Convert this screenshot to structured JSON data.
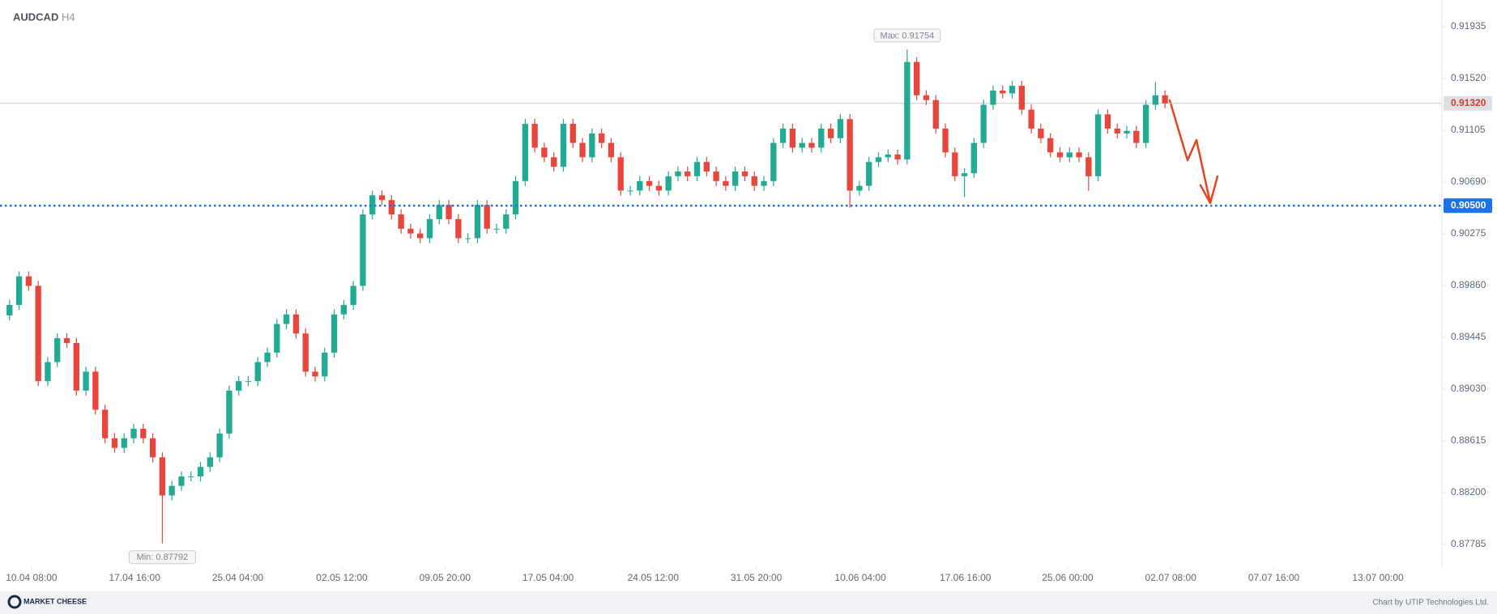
{
  "chart_data": {
    "type": "candlestick",
    "title": "AUDCAD",
    "subtitle": "H4",
    "up_color": "#22ab94",
    "down_color": "#e8453c",
    "grid": false,
    "open": [
      0.8962,
      0.89704,
      0.89933,
      0.89857,
      0.89093,
      0.89246,
      0.89437,
      0.89399,
      0.89017,
      0.89169,
      0.88864,
      0.88635,
      0.88558,
      0.88635,
      0.88711,
      0.88635,
      0.88482,
      0.88176,
      0.88253,
      0.88329,
      0.88329,
      0.88405,
      0.88482,
      0.88673,
      0.89017,
      0.89093,
      0.89093,
      0.89246,
      0.89322,
      0.89551,
      0.89628,
      0.89475,
      0.89169,
      0.89131,
      0.89322,
      0.89628,
      0.89704,
      0.89857,
      0.9043,
      0.90583,
      0.90545,
      0.9043,
      0.90315,
      0.90277,
      0.90239,
      0.90392,
      0.90506,
      0.90392,
      0.90239,
      0.90239,
      0.90506,
      0.90315,
      0.90315,
      0.9043,
      0.90697,
      0.91156,
      0.90965,
      0.90888,
      0.90812,
      0.91156,
      0.91003,
      0.90888,
      0.91079,
      0.91003,
      0.90888,
      0.90621,
      0.90621,
      0.90697,
      0.90659,
      0.90621,
      0.90736,
      0.90774,
      0.90736,
      0.9085,
      0.90774,
      0.90697,
      0.90659,
      0.90774,
      0.90736,
      0.90659,
      0.90697,
      0.91003,
      0.91118,
      0.90965,
      0.91003,
      0.90965,
      0.91118,
      0.91041,
      0.91194,
      0.90621,
      0.90659,
      0.9085,
      0.90888,
      0.9091,
      0.9087,
      0.91652,
      0.91385,
      0.91347,
      0.91118,
      0.90927,
      0.90736,
      0.9076,
      0.91003,
      0.91309,
      0.91423,
      0.914,
      0.91461,
      0.9127,
      0.91118,
      0.91041,
      0.90927,
      0.90888,
      0.90927,
      0.90888,
      0.90736,
      0.91232,
      0.91118,
      0.91079,
      0.911,
      0.91003,
      0.91309,
      0.91385
    ],
    "high": [
      0.89744,
      0.89973,
      0.89973,
      0.89897,
      0.89286,
      0.89477,
      0.89477,
      0.89439,
      0.89209,
      0.89209,
      0.88904,
      0.88675,
      0.88675,
      0.88751,
      0.88751,
      0.88675,
      0.88522,
      0.88293,
      0.88369,
      0.88369,
      0.88445,
      0.88522,
      0.88713,
      0.89057,
      0.89133,
      0.89133,
      0.89286,
      0.89362,
      0.89591,
      0.89668,
      0.89668,
      0.89515,
      0.89209,
      0.89362,
      0.89668,
      0.89744,
      0.89897,
      0.9047,
      0.90623,
      0.90623,
      0.90585,
      0.9047,
      0.90355,
      0.90317,
      0.90432,
      0.90546,
      0.90546,
      0.90432,
      0.90279,
      0.90546,
      0.90546,
      0.90355,
      0.9047,
      0.90737,
      0.91196,
      0.91196,
      0.91005,
      0.90928,
      0.91196,
      0.91196,
      0.91043,
      0.91119,
      0.91119,
      0.91043,
      0.90928,
      0.90661,
      0.90737,
      0.90737,
      0.90699,
      0.90776,
      0.90814,
      0.90814,
      0.9089,
      0.9089,
      0.90814,
      0.90737,
      0.90814,
      0.90814,
      0.90776,
      0.90737,
      0.91043,
      0.91158,
      0.91158,
      0.91043,
      0.91043,
      0.91158,
      0.91158,
      0.91234,
      0.91234,
      0.90699,
      0.9089,
      0.90928,
      0.9095,
      0.9095,
      0.91754,
      0.91692,
      0.91425,
      0.91387,
      0.91158,
      0.90967,
      0.908,
      0.91043,
      0.91349,
      0.91463,
      0.91463,
      0.91501,
      0.91501,
      0.9131,
      0.91158,
      0.91081,
      0.90967,
      0.90967,
      0.90967,
      0.90928,
      0.91272,
      0.91272,
      0.91158,
      0.9114,
      0.9114,
      0.91349,
      0.9149,
      0.91425
    ],
    "low": [
      0.8958,
      0.89664,
      0.89817,
      0.89053,
      0.89053,
      0.89206,
      0.89359,
      0.88977,
      0.88977,
      0.88824,
      0.88595,
      0.88518,
      0.88518,
      0.88595,
      0.88595,
      0.88442,
      0.87792,
      0.88136,
      0.88213,
      0.88289,
      0.88289,
      0.88365,
      0.88442,
      0.88633,
      0.88977,
      0.89053,
      0.89053,
      0.89206,
      0.89282,
      0.89511,
      0.89435,
      0.89129,
      0.89091,
      0.89091,
      0.89282,
      0.89588,
      0.89664,
      0.89817,
      0.9039,
      0.90505,
      0.9039,
      0.90275,
      0.90237,
      0.90199,
      0.90199,
      0.90352,
      0.90352,
      0.90199,
      0.90199,
      0.90199,
      0.90275,
      0.90275,
      0.90275,
      0.9039,
      0.90657,
      0.90925,
      0.90848,
      0.90772,
      0.90772,
      0.90963,
      0.90848,
      0.90848,
      0.90963,
      0.90848,
      0.90581,
      0.90581,
      0.90581,
      0.90619,
      0.90581,
      0.90581,
      0.90696,
      0.90696,
      0.90696,
      0.90734,
      0.90657,
      0.90619,
      0.90619,
      0.90696,
      0.90619,
      0.90619,
      0.90657,
      0.90963,
      0.90925,
      0.90925,
      0.90925,
      0.90925,
      0.91001,
      0.91001,
      0.90483,
      0.90581,
      0.90619,
      0.9081,
      0.90848,
      0.9083,
      0.9083,
      0.91345,
      0.91307,
      0.91078,
      0.90887,
      0.90696,
      0.9057,
      0.9072,
      0.90963,
      0.91269,
      0.9136,
      0.9136,
      0.9123,
      0.91078,
      0.91001,
      0.90887,
      0.90848,
      0.90848,
      0.90848,
      0.9062,
      0.90696,
      0.91078,
      0.91039,
      0.91039,
      0.90963,
      0.90963,
      0.91269,
      0.9128
    ],
    "close": [
      0.89704,
      0.89933,
      0.89857,
      0.89093,
      0.89246,
      0.89437,
      0.89399,
      0.89017,
      0.89169,
      0.88864,
      0.88635,
      0.88558,
      0.88635,
      0.88711,
      0.88635,
      0.88482,
      0.88176,
      0.88253,
      0.88329,
      0.88329,
      0.88405,
      0.88482,
      0.88673,
      0.89017,
      0.89093,
      0.89093,
      0.89246,
      0.89322,
      0.89551,
      0.89628,
      0.89475,
      0.89169,
      0.89131,
      0.89322,
      0.89628,
      0.89704,
      0.89857,
      0.9043,
      0.90583,
      0.90545,
      0.9043,
      0.90315,
      0.90277,
      0.90239,
      0.90392,
      0.90506,
      0.90392,
      0.90239,
      0.90239,
      0.90506,
      0.90315,
      0.90315,
      0.9043,
      0.90697,
      0.91156,
      0.90965,
      0.90888,
      0.90812,
      0.91156,
      0.91003,
      0.90888,
      0.91079,
      0.91003,
      0.90888,
      0.90621,
      0.90621,
      0.90697,
      0.90659,
      0.90621,
      0.90736,
      0.90774,
      0.90736,
      0.9085,
      0.90774,
      0.90697,
      0.90659,
      0.90774,
      0.90736,
      0.90659,
      0.90697,
      0.91003,
      0.91118,
      0.90965,
      0.91003,
      0.90965,
      0.91118,
      0.91041,
      0.91194,
      0.90621,
      0.90659,
      0.9085,
      0.90888,
      0.9091,
      0.9087,
      0.91652,
      0.91385,
      0.91347,
      0.91118,
      0.90927,
      0.90736,
      0.9076,
      0.91003,
      0.91309,
      0.91423,
      0.914,
      0.91461,
      0.9127,
      0.91118,
      0.91041,
      0.90927,
      0.90888,
      0.90927,
      0.90888,
      0.90736,
      0.91232,
      0.91118,
      0.91079,
      0.911,
      0.91003,
      0.91309,
      0.91385,
      0.9132
    ],
    "xlim": [
      -1,
      150
    ],
    "xticks": [
      {
        "value": 2.3,
        "label": "10.04 08:00"
      },
      {
        "value": 13.1,
        "label": "17.04 16:00"
      },
      {
        "value": 23.9,
        "label": "25.04 04:00"
      },
      {
        "value": 34.8,
        "label": "02.05 12:00"
      },
      {
        "value": 45.6,
        "label": "09.05 20:00"
      },
      {
        "value": 56.4,
        "label": "17.05 04:00"
      },
      {
        "value": 67.4,
        "label": "24.05 12:00"
      },
      {
        "value": 78.2,
        "label": "31.05 20:00"
      },
      {
        "value": 89.1,
        "label": "10.06 04:00"
      },
      {
        "value": 100.1,
        "label": "17.06 16:00"
      },
      {
        "value": 110.8,
        "label": "25.06 00:00"
      },
      {
        "value": 121.6,
        "label": "02.07 08:00"
      },
      {
        "value": 132.4,
        "label": "07.07 16:00"
      },
      {
        "value": 143.3,
        "label": "13.07 00:00"
      }
    ],
    "ylim": [
      0.87602,
      0.92149
    ],
    "yticks": [
      0.91935,
      {
        "value": 0.9152,
        "label": "0.91520"
      },
      0.91105,
      {
        "value": 0.9069,
        "label": "0.90690"
      },
      0.90275,
      {
        "value": 0.8986,
        "label": "0.89860"
      },
      0.89445,
      {
        "value": 0.8903,
        "label": "0.89030"
      },
      0.88615,
      {
        "value": 0.882,
        "label": "0.88200"
      },
      0.87785
    ],
    "last_price": {
      "value": 0.9132,
      "label": "0.91320"
    },
    "level": {
      "value": 0.905,
      "label": "0.90500",
      "color": "#1a73e8"
    },
    "max_annotation": {
      "label": "Max: 0.91754",
      "value": 0.91754
    },
    "min_annotation": {
      "label": "Min: 0.87792",
      "value": 0.87792
    }
  },
  "footer": {
    "logo": "MARKET CHEESE",
    "credit": "Chart by UTIP Technologies Ltd."
  }
}
